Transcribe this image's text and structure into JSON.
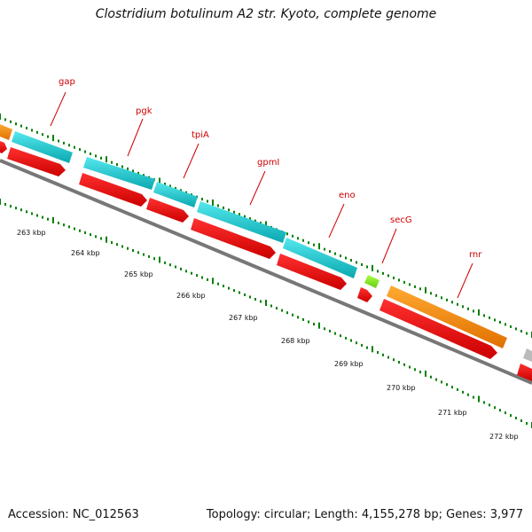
{
  "title": "Clostridium botulinum A2 str. Kyoto, complete genome",
  "accession": "Accession: NC_012563",
  "summary": "Topology: circular; Length: 4,155,278 bp; Genes: 3,977",
  "gene_labels": [
    {
      "id": "gap",
      "text": "gap"
    },
    {
      "id": "pgk",
      "text": "pgk"
    },
    {
      "id": "tpiA",
      "text": "tpiA"
    },
    {
      "id": "gpmI",
      "text": "gpmI"
    },
    {
      "id": "eno",
      "text": "eno"
    },
    {
      "id": "secG",
      "text": "secG"
    },
    {
      "id": "rnr",
      "text": "rnr"
    }
  ],
  "scale_labels": [
    "263 kbp",
    "264 kbp",
    "265 kbp",
    "266 kbp",
    "267 kbp",
    "268 kbp",
    "269 kbp",
    "270 kbp",
    "271 kbp",
    "272 kbp"
  ],
  "colors": {
    "cds_forward": "#1ec8d0",
    "cds_reverse": "#ff0000",
    "orange_feature": "#ff8c00",
    "green_feature": "#88ee22",
    "gray_feature": "#bbbbbb",
    "backbone": "#777777",
    "tick": "#008000",
    "label": "#cc0000"
  }
}
